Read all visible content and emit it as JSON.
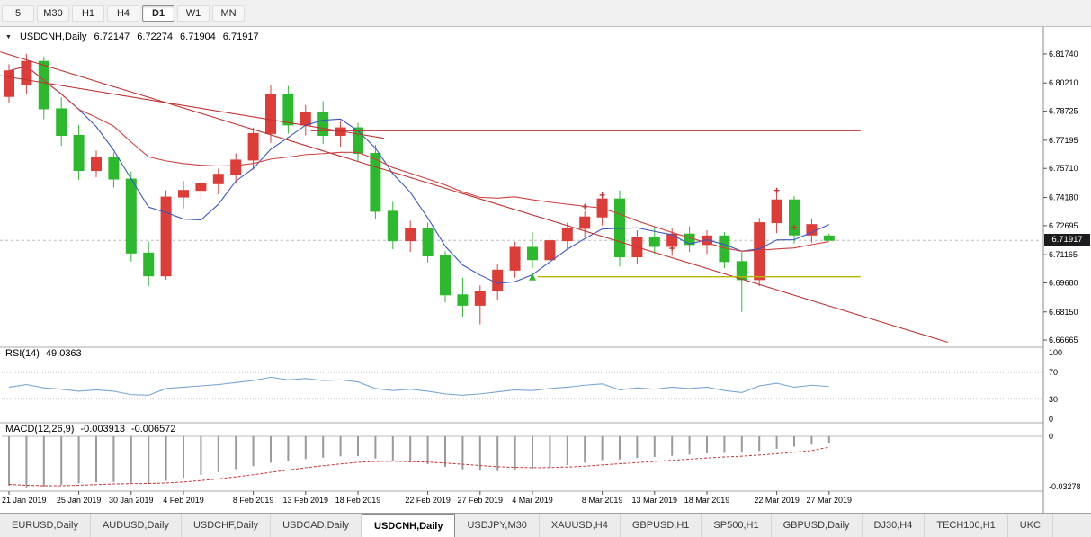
{
  "toolbar": {
    "timeframes": [
      {
        "label": "5",
        "active": false
      },
      {
        "label": "M30",
        "active": false
      },
      {
        "label": "H1",
        "active": false
      },
      {
        "label": "H4",
        "active": false
      },
      {
        "label": "D1",
        "active": true
      },
      {
        "label": "W1",
        "active": false
      },
      {
        "label": "MN",
        "active": false
      }
    ]
  },
  "chart": {
    "title": {
      "symbol": "USDCNH,Daily",
      "open": "6.72147",
      "high": "6.72274",
      "low": "6.71904",
      "close": "6.71917"
    },
    "price_axis": {
      "labels": [
        "6.81740",
        "6.80210",
        "6.78725",
        "6.77195",
        "6.75710",
        "6.74180",
        "6.72695",
        "6.71165",
        "6.69680",
        "6.68150",
        "6.66665"
      ],
      "current": "6.71917"
    },
    "x_axis": {
      "ticks": [
        {
          "i": 0,
          "label": "21 Jan 2019"
        },
        {
          "i": 4,
          "label": "25 Jan 2019"
        },
        {
          "i": 7,
          "label": "30 Jan 2019"
        },
        {
          "i": 10,
          "label": "4 Feb 2019"
        },
        {
          "i": 14,
          "label": "8 Feb 2019"
        },
        {
          "i": 17,
          "label": "13 Feb 2019"
        },
        {
          "i": 20,
          "label": "18 Feb 2019"
        },
        {
          "i": 24,
          "label": "22 Feb 2019"
        },
        {
          "i": 27,
          "label": "27 Feb 2019"
        },
        {
          "i": 30,
          "label": "4 Mar 2019"
        },
        {
          "i": 34,
          "label": "8 Mar 2019"
        },
        {
          "i": 37,
          "label": "13 Mar 2019"
        },
        {
          "i": 40,
          "label": "18 Mar 2019"
        },
        {
          "i": 44,
          "label": "22 Mar 2019"
        },
        {
          "i": 47,
          "label": "27 Mar 2019"
        }
      ]
    }
  },
  "indicators": {
    "rsi": {
      "label": "RSI(14)",
      "value": "49.0363",
      "levels": [
        "100",
        "70",
        "30",
        "0"
      ],
      "values": [
        48,
        52,
        47,
        45,
        42,
        44,
        42,
        37,
        36,
        46,
        48,
        50,
        52,
        55,
        58,
        63,
        59,
        61,
        58,
        59,
        56,
        46,
        43,
        45,
        42,
        38,
        36,
        38,
        41,
        44,
        43,
        46,
        48,
        51,
        53,
        44,
        47,
        45,
        48,
        46,
        48,
        43,
        40,
        50,
        54,
        48,
        51,
        49
      ]
    },
    "macd": {
      "label": "MACD(12,26,9)",
      "value_main": "-0.003913",
      "value_signal": "-0.006572",
      "axis": [
        "0",
        "-0.03278"
      ],
      "histogram": [
        -0.03,
        -0.031,
        -0.0306,
        -0.0296,
        -0.0286,
        -0.028,
        -0.0278,
        -0.0283,
        -0.0286,
        -0.0271,
        -0.0253,
        -0.0235,
        -0.0218,
        -0.02,
        -0.0182,
        -0.016,
        -0.0148,
        -0.0138,
        -0.013,
        -0.0122,
        -0.0121,
        -0.0135,
        -0.015,
        -0.0159,
        -0.0169,
        -0.0186,
        -0.0201,
        -0.0209,
        -0.0211,
        -0.0206,
        -0.0198,
        -0.0188,
        -0.0175,
        -0.016,
        -0.0145,
        -0.0141,
        -0.0133,
        -0.0126,
        -0.0119,
        -0.0111,
        -0.0103,
        -0.0101,
        -0.0099,
        -0.0089,
        -0.0076,
        -0.0063,
        -0.0051,
        -0.0039
      ],
      "signal": [
        -0.0292,
        -0.0298,
        -0.0301,
        -0.0301,
        -0.0298,
        -0.0294,
        -0.029,
        -0.0288,
        -0.0287,
        -0.0284,
        -0.0278,
        -0.0269,
        -0.0259,
        -0.0247,
        -0.0234,
        -0.0219,
        -0.0205,
        -0.0191,
        -0.0179,
        -0.0168,
        -0.0158,
        -0.0153,
        -0.0152,
        -0.0154,
        -0.0157,
        -0.0163,
        -0.017,
        -0.0178,
        -0.0185,
        -0.0189,
        -0.0191,
        -0.019,
        -0.0187,
        -0.0182,
        -0.0174,
        -0.0167,
        -0.016,
        -0.0153,
        -0.0146,
        -0.0139,
        -0.0132,
        -0.0126,
        -0.0121,
        -0.0114,
        -0.0106,
        -0.0097,
        -0.0087,
        -0.0066
      ]
    }
  },
  "chart_data": {
    "type": "candlestick",
    "symbol": "USDCNH",
    "timeframe": "Daily",
    "visible_price_range": [
      6.6648,
      6.8278
    ],
    "dates": [
      "21 Jan",
      "22 Jan",
      "23 Jan",
      "24 Jan",
      "25 Jan",
      "28 Jan",
      "29 Jan",
      "30 Jan",
      "31 Jan",
      "1 Feb",
      "4 Feb",
      "5 Feb",
      "6 Feb",
      "7 Feb",
      "8 Feb",
      "11 Feb",
      "12 Feb",
      "13 Feb",
      "14 Feb",
      "15 Feb",
      "18 Feb",
      "19 Feb",
      "20 Feb",
      "21 Feb",
      "22 Feb",
      "25 Feb",
      "26 Feb",
      "27 Feb",
      "28 Feb",
      "1 Mar",
      "4 Mar",
      "5 Mar",
      "6 Mar",
      "7 Mar",
      "8 Mar",
      "11 Mar",
      "12 Mar",
      "13 Mar",
      "14 Mar",
      "15 Mar",
      "18 Mar",
      "19 Mar",
      "20 Mar",
      "21 Mar",
      "22 Mar",
      "25 Mar",
      "26 Mar",
      "27 Mar"
    ],
    "ohlc": [
      [
        6.795,
        6.812,
        6.7915,
        6.8085
      ],
      [
        6.801,
        6.8174,
        6.796,
        6.8135
      ],
      [
        6.8135,
        6.816,
        6.783,
        6.7885
      ],
      [
        6.7885,
        6.7945,
        6.769,
        6.7745
      ],
      [
        6.7745,
        6.78,
        6.751,
        6.756
      ],
      [
        6.756,
        6.7665,
        6.7525,
        6.763
      ],
      [
        6.763,
        6.7655,
        6.747,
        6.7515
      ],
      [
        6.7515,
        6.7555,
        6.708,
        6.7125
      ],
      [
        6.7125,
        6.7185,
        6.695,
        6.7005
      ],
      [
        6.7005,
        6.7455,
        6.6985,
        6.742
      ],
      [
        6.742,
        6.7505,
        6.736,
        6.7455
      ],
      [
        6.7455,
        6.7535,
        6.7405,
        6.749
      ],
      [
        6.749,
        6.757,
        6.7435,
        6.754
      ],
      [
        6.754,
        6.765,
        6.749,
        6.7615
      ],
      [
        6.7615,
        6.7785,
        6.7565,
        6.7755
      ],
      [
        6.7755,
        6.801,
        6.7705,
        6.796
      ],
      [
        6.796,
        6.8005,
        6.7755,
        6.78
      ],
      [
        6.78,
        6.7905,
        6.7745,
        6.7865
      ],
      [
        6.7865,
        6.7925,
        6.77,
        6.7745
      ],
      [
        6.7745,
        6.7825,
        6.7685,
        6.7785
      ],
      [
        6.7785,
        6.781,
        6.7605,
        6.765
      ],
      [
        6.765,
        6.7695,
        6.7305,
        6.7345
      ],
      [
        6.7345,
        6.7395,
        6.7145,
        6.719
      ],
      [
        6.719,
        6.7295,
        6.713,
        6.7255
      ],
      [
        6.7255,
        6.7285,
        6.7075,
        6.711
      ],
      [
        6.711,
        6.7135,
        6.6865,
        6.6905
      ],
      [
        6.6905,
        6.6995,
        6.679,
        6.685
      ],
      [
        6.685,
        6.6955,
        6.675,
        6.6925
      ],
      [
        6.6925,
        6.7065,
        6.688,
        6.7035
      ],
      [
        6.7035,
        6.7185,
        6.6995,
        6.7155
      ],
      [
        6.7155,
        6.7235,
        6.7045,
        6.709
      ],
      [
        6.709,
        6.7225,
        6.706,
        6.719
      ],
      [
        6.719,
        6.7285,
        6.7145,
        6.7255
      ],
      [
        6.7255,
        6.7345,
        6.7205,
        6.7315
      ],
      [
        6.7315,
        6.744,
        6.727,
        6.741
      ],
      [
        6.741,
        6.7455,
        6.7055,
        6.7105
      ],
      [
        6.7105,
        6.7245,
        6.7065,
        6.7205
      ],
      [
        6.7205,
        6.7265,
        6.712,
        6.716
      ],
      [
        6.716,
        6.7255,
        6.711,
        6.7225
      ],
      [
        6.7225,
        6.7265,
        6.713,
        6.717
      ],
      [
        6.717,
        6.7245,
        6.712,
        6.7215
      ],
      [
        6.7215,
        6.7235,
        6.7045,
        6.708
      ],
      [
        6.708,
        6.713,
        6.6815,
        6.6985
      ],
      [
        6.6985,
        6.731,
        6.695,
        6.7285
      ],
      [
        6.7285,
        6.7455,
        6.723,
        6.7405
      ],
      [
        6.7405,
        6.7425,
        6.7175,
        6.722
      ],
      [
        6.722,
        6.7305,
        6.718,
        6.7275
      ],
      [
        6.72147,
        6.72274,
        6.71904,
        6.71917
      ]
    ],
    "overlays": [
      {
        "name": "ma-fast",
        "type": "sma",
        "period": 5,
        "color_key": "ma_fast"
      },
      {
        "name": "ma-slow",
        "type": "sma",
        "period": 21,
        "color_key": "ma_slow"
      }
    ],
    "trendlines": [
      {
        "i1": -0.5,
        "p1": 6.8185,
        "i2": 53.8,
        "p2": 6.6655,
        "color_key": "trendline"
      },
      {
        "i1": -0.5,
        "p1": 6.806,
        "i2": 21.5,
        "p2": 6.773,
        "color_key": "trendline"
      }
    ],
    "hlines": [
      {
        "p": 6.777,
        "i1": 17.3,
        "i2": 48.8,
        "color_key": "trendline"
      },
      {
        "p": 6.7,
        "i1": 30.3,
        "i2": 48.8,
        "color_key": "hline_yellow"
      }
    ],
    "markers": [
      {
        "type": "arrow-up",
        "i": 30,
        "p": 6.6995,
        "color_key": "bear"
      },
      {
        "type": "cross",
        "i": 33,
        "p": 6.737,
        "color_key": "trendline"
      },
      {
        "type": "cross",
        "i": 34,
        "p": 6.743,
        "color_key": "trendline"
      },
      {
        "type": "cross",
        "i": 38,
        "p": 6.715,
        "color_key": "trendline"
      },
      {
        "type": "cross",
        "i": 44,
        "p": 6.7455,
        "color_key": "trendline"
      },
      {
        "type": "cross",
        "i": 45,
        "p": 6.726,
        "color_key": "trendline"
      }
    ]
  },
  "colors": {
    "bull": "#dd3d38",
    "bear": "#2db92d",
    "ma_fast": "#3a56c4",
    "ma_slow": "#d04040",
    "trendline": "#c03232",
    "hline_yellow": "#b8b400",
    "rsi": "#7aa6d6",
    "macd_hist": "#9a9a9a",
    "macd_signal": "#cc3333",
    "bid_line": "#bcbcbc"
  },
  "tabs": [
    {
      "label": "EURUSD,Daily",
      "active": false
    },
    {
      "label": "AUDUSD,Daily",
      "active": false
    },
    {
      "label": "USDCHF,Daily",
      "active": false
    },
    {
      "label": "USDCAD,Daily",
      "active": false
    },
    {
      "label": "USDCNH,Daily",
      "active": true
    },
    {
      "label": "USDJPY,M30",
      "active": false
    },
    {
      "label": "XAUUSD,H4",
      "active": false
    },
    {
      "label": "GBPUSD,H1",
      "active": false
    },
    {
      "label": "SP500,H1",
      "active": false
    },
    {
      "label": "GBPUSD,Daily",
      "active": false
    },
    {
      "label": "DJ30,H4",
      "active": false
    },
    {
      "label": "TECH100,H1",
      "active": false
    },
    {
      "label": "UKC",
      "active": false
    }
  ]
}
